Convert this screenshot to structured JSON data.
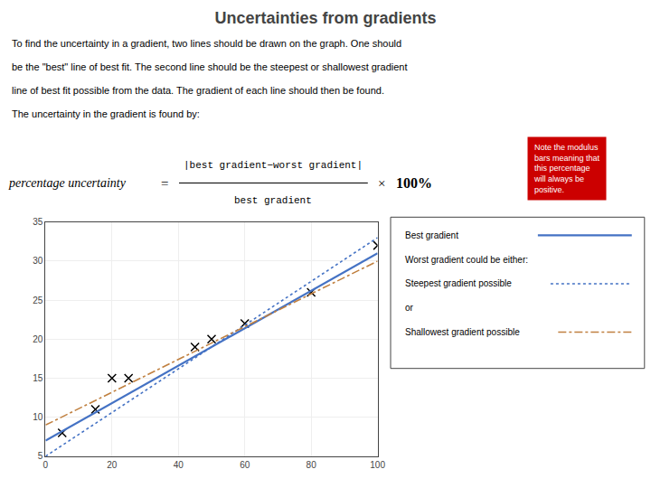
{
  "chart_data": {
    "type": "scatter",
    "title": "Uncertainties from gradients",
    "subtitle": [
      "To find the uncertainty in a gradient, two lines should be drawn on the graph. One should",
      "be the \"best\" line of best fit. The second line should be the steepest or shallowest gradient",
      "line of best fit possible from the data. The gradient of each line should then be found.",
      "The uncertainty in the gradient is found by:"
    ],
    "annotations": [
      {
        "text": "percentage uncertainty"
      },
      {
        "text": "="
      },
      {
        "text": "|best gradient−worst gradient|"
      },
      {
        "text": "best gradient"
      },
      {
        "text": "×"
      },
      {
        "text": "100%"
      },
      {
        "text": "Note the modulus\nbars meaning that\nthis percentage\nwill always be\npositive.",
        "color": "#cc0000"
      },
      {
        "text": "Worst gradient could be either:"
      },
      {
        "text": "or"
      }
    ],
    "series": [
      {
        "type": "scatter",
        "marker": "x",
        "color": "#000000",
        "x": [
          5,
          15,
          20,
          25,
          45,
          50,
          60,
          80,
          100
        ],
        "values": [
          8,
          11,
          15,
          15,
          19,
          20,
          22,
          26,
          32
        ]
      },
      {
        "name": "Best gradient",
        "type": "line",
        "line_style": "solid",
        "color": "#4472c4",
        "x": [
          0,
          100
        ],
        "values": [
          7,
          31
        ]
      },
      {
        "name": "Steepest gradient possible",
        "type": "line",
        "line_style": "dotted",
        "color": "#4472c4",
        "x": [
          0,
          100
        ],
        "values": [
          5,
          33
        ]
      },
      {
        "name": "Shallowest gradient possible",
        "type": "line",
        "line_style": "dashdot",
        "color": "#c08040",
        "x": [
          0,
          100
        ],
        "values": [
          9,
          30
        ]
      }
    ],
    "xlim": [
      0,
      100
    ],
    "xticks": [
      0,
      20,
      40,
      60,
      80,
      100
    ],
    "ylim": [
      5,
      35
    ],
    "yticks": [
      5,
      10,
      15,
      20,
      25,
      30,
      35
    ],
    "grid": true
  }
}
